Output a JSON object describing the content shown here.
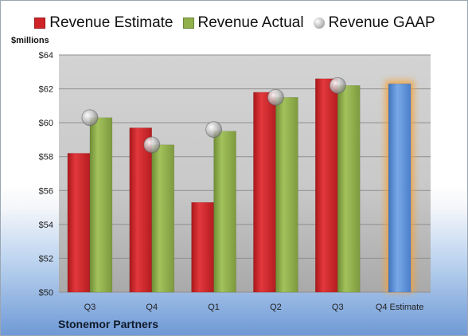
{
  "chart_data": {
    "type": "bar",
    "ylabel": "$millions",
    "ylim": [
      50,
      64
    ],
    "yticks": [
      "$50",
      "$52",
      "$54",
      "$56",
      "$58",
      "$60",
      "$62",
      "$64"
    ],
    "ytick_values": [
      50,
      52,
      54,
      56,
      58,
      60,
      62,
      64
    ],
    "categories": [
      "Q3",
      "Q4",
      "Q1",
      "Q2",
      "Q3",
      "Q4 Estimate"
    ],
    "series": [
      {
        "name": "Revenue Estimate",
        "kind": "bar",
        "color": "#cf2327",
        "values": [
          58.2,
          59.7,
          55.3,
          61.8,
          62.6,
          null
        ]
      },
      {
        "name": "Revenue Actual",
        "kind": "bar",
        "color": "#8fb04b",
        "values": [
          60.3,
          58.7,
          59.5,
          61.5,
          62.2,
          null
        ]
      },
      {
        "name": "Revenue GAAP",
        "kind": "marker",
        "color": "#bdbdbd",
        "values": [
          60.3,
          58.7,
          59.6,
          61.5,
          62.2,
          null
        ]
      }
    ],
    "estimate_bar": {
      "category": "Q4 Estimate",
      "value": 62.3,
      "color": "#5b8fd6",
      "glow": "#f5a23a"
    },
    "grid": true,
    "legend_position": "top-center"
  },
  "company": "Stonemor Partners"
}
